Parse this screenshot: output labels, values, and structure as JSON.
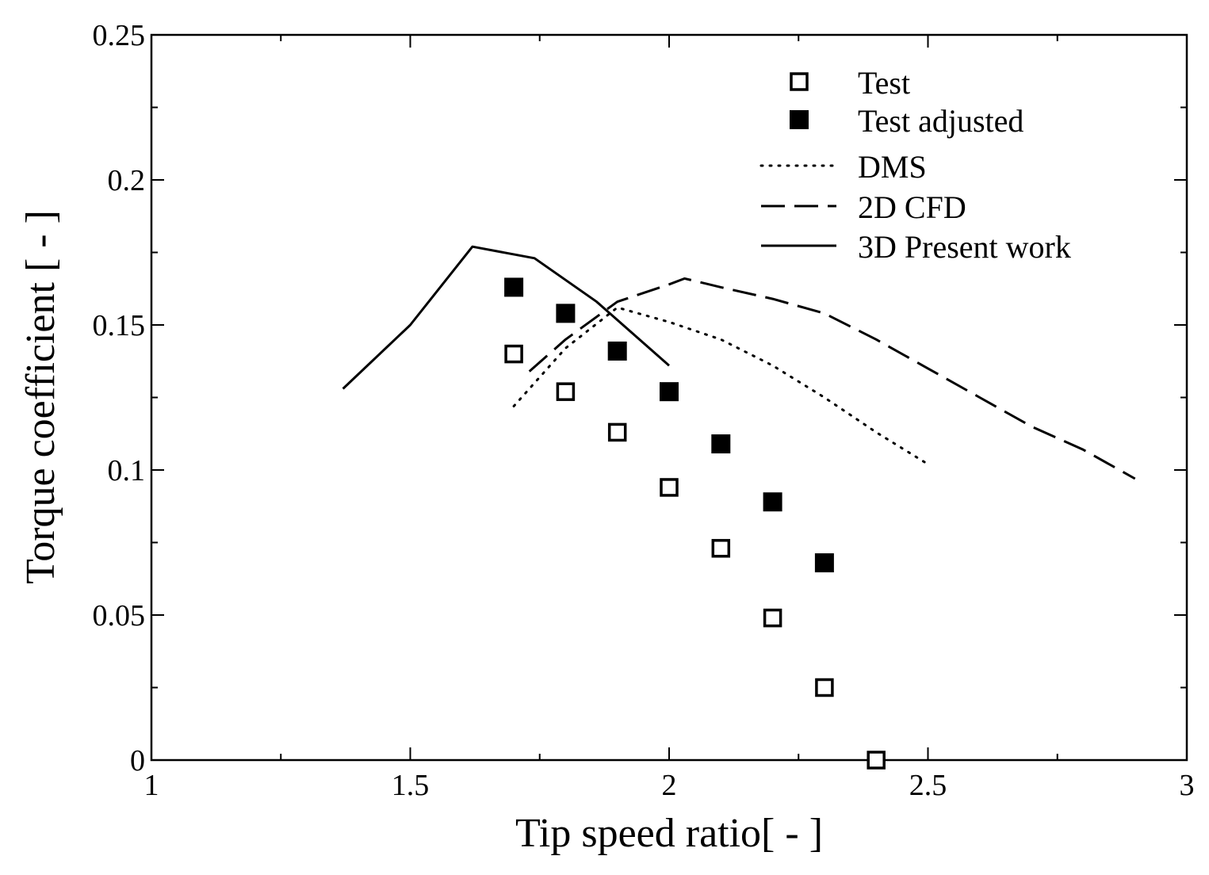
{
  "chart_data": {
    "type": "scatter",
    "title": "",
    "xlabel": "Tip speed ratio[ - ]",
    "ylabel": "Torque coefficient [ - ]",
    "xlim": [
      1,
      3
    ],
    "ylim": [
      0,
      0.25
    ],
    "x_ticks": [
      1,
      1.5,
      2,
      2.5,
      3
    ],
    "x_tick_labels": [
      "1",
      "1.5",
      "2",
      "2.5",
      "3"
    ],
    "y_ticks": [
      0,
      0.05,
      0.1,
      0.15,
      0.2,
      0.25
    ],
    "y_tick_labels": [
      "0",
      "0.05",
      "0.1",
      "0.15",
      "0.2",
      "0.25"
    ],
    "grid": false,
    "legend_position": "top-right",
    "series": [
      {
        "name": "Test",
        "kind": "marker",
        "marker": "open-square",
        "color": "#000000",
        "x": [
          1.7,
          1.8,
          1.9,
          2.0,
          2.1,
          2.2,
          2.3,
          2.4
        ],
        "y": [
          0.14,
          0.127,
          0.113,
          0.094,
          0.073,
          0.049,
          0.025,
          0.0
        ]
      },
      {
        "name": "Test adjusted",
        "kind": "marker",
        "marker": "filled-square",
        "color": "#000000",
        "x": [
          1.7,
          1.8,
          1.9,
          2.0,
          2.1,
          2.2,
          2.3
        ],
        "y": [
          0.163,
          0.154,
          0.141,
          0.127,
          0.109,
          0.089,
          0.068
        ]
      },
      {
        "name": "DMS",
        "kind": "line",
        "dash": "dotted",
        "color": "#000000",
        "x": [
          1.7,
          1.8,
          1.9,
          2.0,
          2.1,
          2.2,
          2.3,
          2.4,
          2.5
        ],
        "y": [
          0.122,
          0.142,
          0.156,
          0.151,
          0.145,
          0.136,
          0.125,
          0.113,
          0.102
        ]
      },
      {
        "name": "2D CFD",
        "kind": "line",
        "dash": "dashed",
        "color": "#000000",
        "x": [
          1.73,
          1.8,
          1.9,
          2.0,
          2.03,
          2.1,
          2.2,
          2.3,
          2.4,
          2.5,
          2.6,
          2.7,
          2.8,
          2.9
        ],
        "y": [
          0.134,
          0.145,
          0.158,
          0.164,
          0.166,
          0.163,
          0.159,
          0.154,
          0.145,
          0.135,
          0.125,
          0.115,
          0.107,
          0.097
        ]
      },
      {
        "name": "3D Present work",
        "kind": "line",
        "dash": "solid",
        "color": "#000000",
        "x": [
          1.37,
          1.5,
          1.62,
          1.74,
          1.86,
          2.0
        ],
        "y": [
          0.128,
          0.15,
          0.177,
          0.173,
          0.158,
          0.136
        ]
      }
    ]
  }
}
